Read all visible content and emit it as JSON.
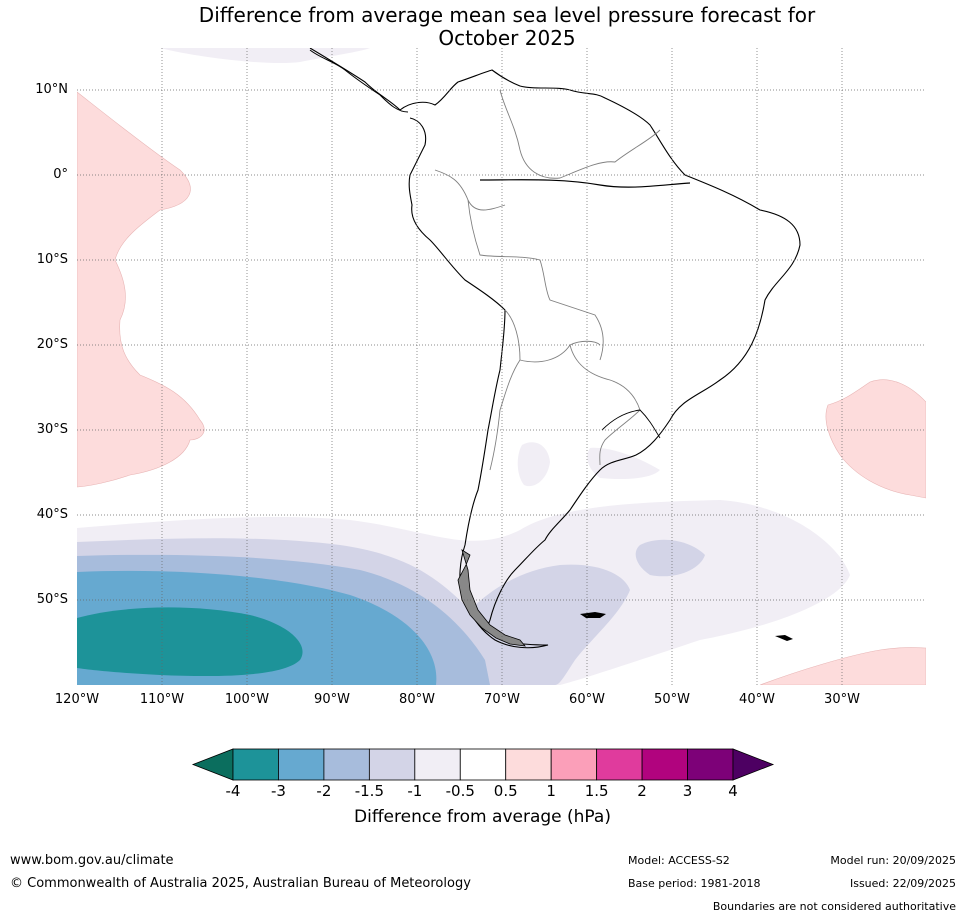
{
  "title": {
    "line1": "Difference from average mean sea level pressure forecast for",
    "line2": "October 2025"
  },
  "map": {
    "region": "South America",
    "lat_labels": [
      "10°N",
      "0°",
      "10°S",
      "20°S",
      "30°S",
      "40°S",
      "50°S"
    ],
    "lon_labels": [
      "120°W",
      "110°W",
      "100°W",
      "90°W",
      "80°W",
      "70°W",
      "60°W",
      "50°W",
      "40°W",
      "30°W"
    ],
    "lat_range": [
      -60,
      15
    ],
    "lon_range": [
      -120,
      -20
    ]
  },
  "colorbar": {
    "ticks": [
      "-4",
      "-3",
      "-2",
      "-1.5",
      "-1",
      "-0.5",
      "0.5",
      "1",
      "1.5",
      "2",
      "3",
      "4"
    ],
    "colors": [
      "#1d9399",
      "#66a9d0",
      "#a7bcdc",
      "#d3d4e7",
      "#f1eef5",
      "#ffffff",
      "#fddcdc",
      "#fb9fb9",
      "#e03b9d",
      "#b1037e",
      "#7d0178"
    ],
    "under_color": "#0b6e5e",
    "over_color": "#4d0062",
    "label": "Difference from average (hPa)"
  },
  "footer": {
    "website": "www.bom.gov.au/climate",
    "copyright": "© Commonwealth of Australia 2025, Australian Bureau of Meteorology",
    "model": "Model: ACCESS-S2",
    "base_period": "Base period: 1981-2018",
    "model_run": "Model run: 20/09/2025",
    "issued": "Issued: 22/09/2025",
    "boundaries": "Boundaries are not considered authoritative"
  }
}
